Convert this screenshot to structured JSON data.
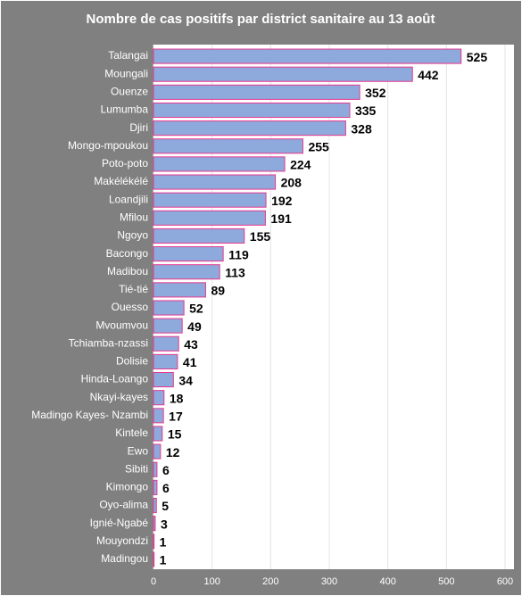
{
  "chart_data": {
    "type": "bar",
    "orientation": "horizontal",
    "title": "Nombre de cas positifs par district sanitaire au 13 août",
    "categories": [
      "Talangai",
      "Moungali",
      "Ouenze",
      "Lumumba",
      "Djiri",
      "Mongo-mpoukou",
      "Poto-poto",
      "Makélékélé",
      "Loandjili",
      "Mfilou",
      "Ngoyo",
      "Bacongo",
      "Madibou",
      "Tié-tié",
      "Ouesso",
      "Mvoumvou",
      "Tchiamba-nzassi",
      "Dolisie",
      "Hinda-Loango",
      "Nkayi-kayes",
      "Madingo Kayes- Nzambi",
      "Kintele",
      "Ewo",
      "Sibiti",
      "Kimongo",
      "Oyo-alima",
      "Ignié-Ngabé",
      "Mouyondzi",
      "Madingou"
    ],
    "values": [
      525,
      442,
      352,
      335,
      328,
      255,
      224,
      208,
      192,
      191,
      155,
      119,
      113,
      89,
      52,
      49,
      43,
      41,
      34,
      18,
      17,
      15,
      12,
      6,
      6,
      5,
      3,
      1,
      1
    ],
    "color": "#8ea9db",
    "edge_color": "#e6398f",
    "xlim": [
      0,
      600
    ],
    "xticks": [
      0,
      100,
      200,
      300,
      400,
      500,
      600
    ],
    "grid": true
  }
}
